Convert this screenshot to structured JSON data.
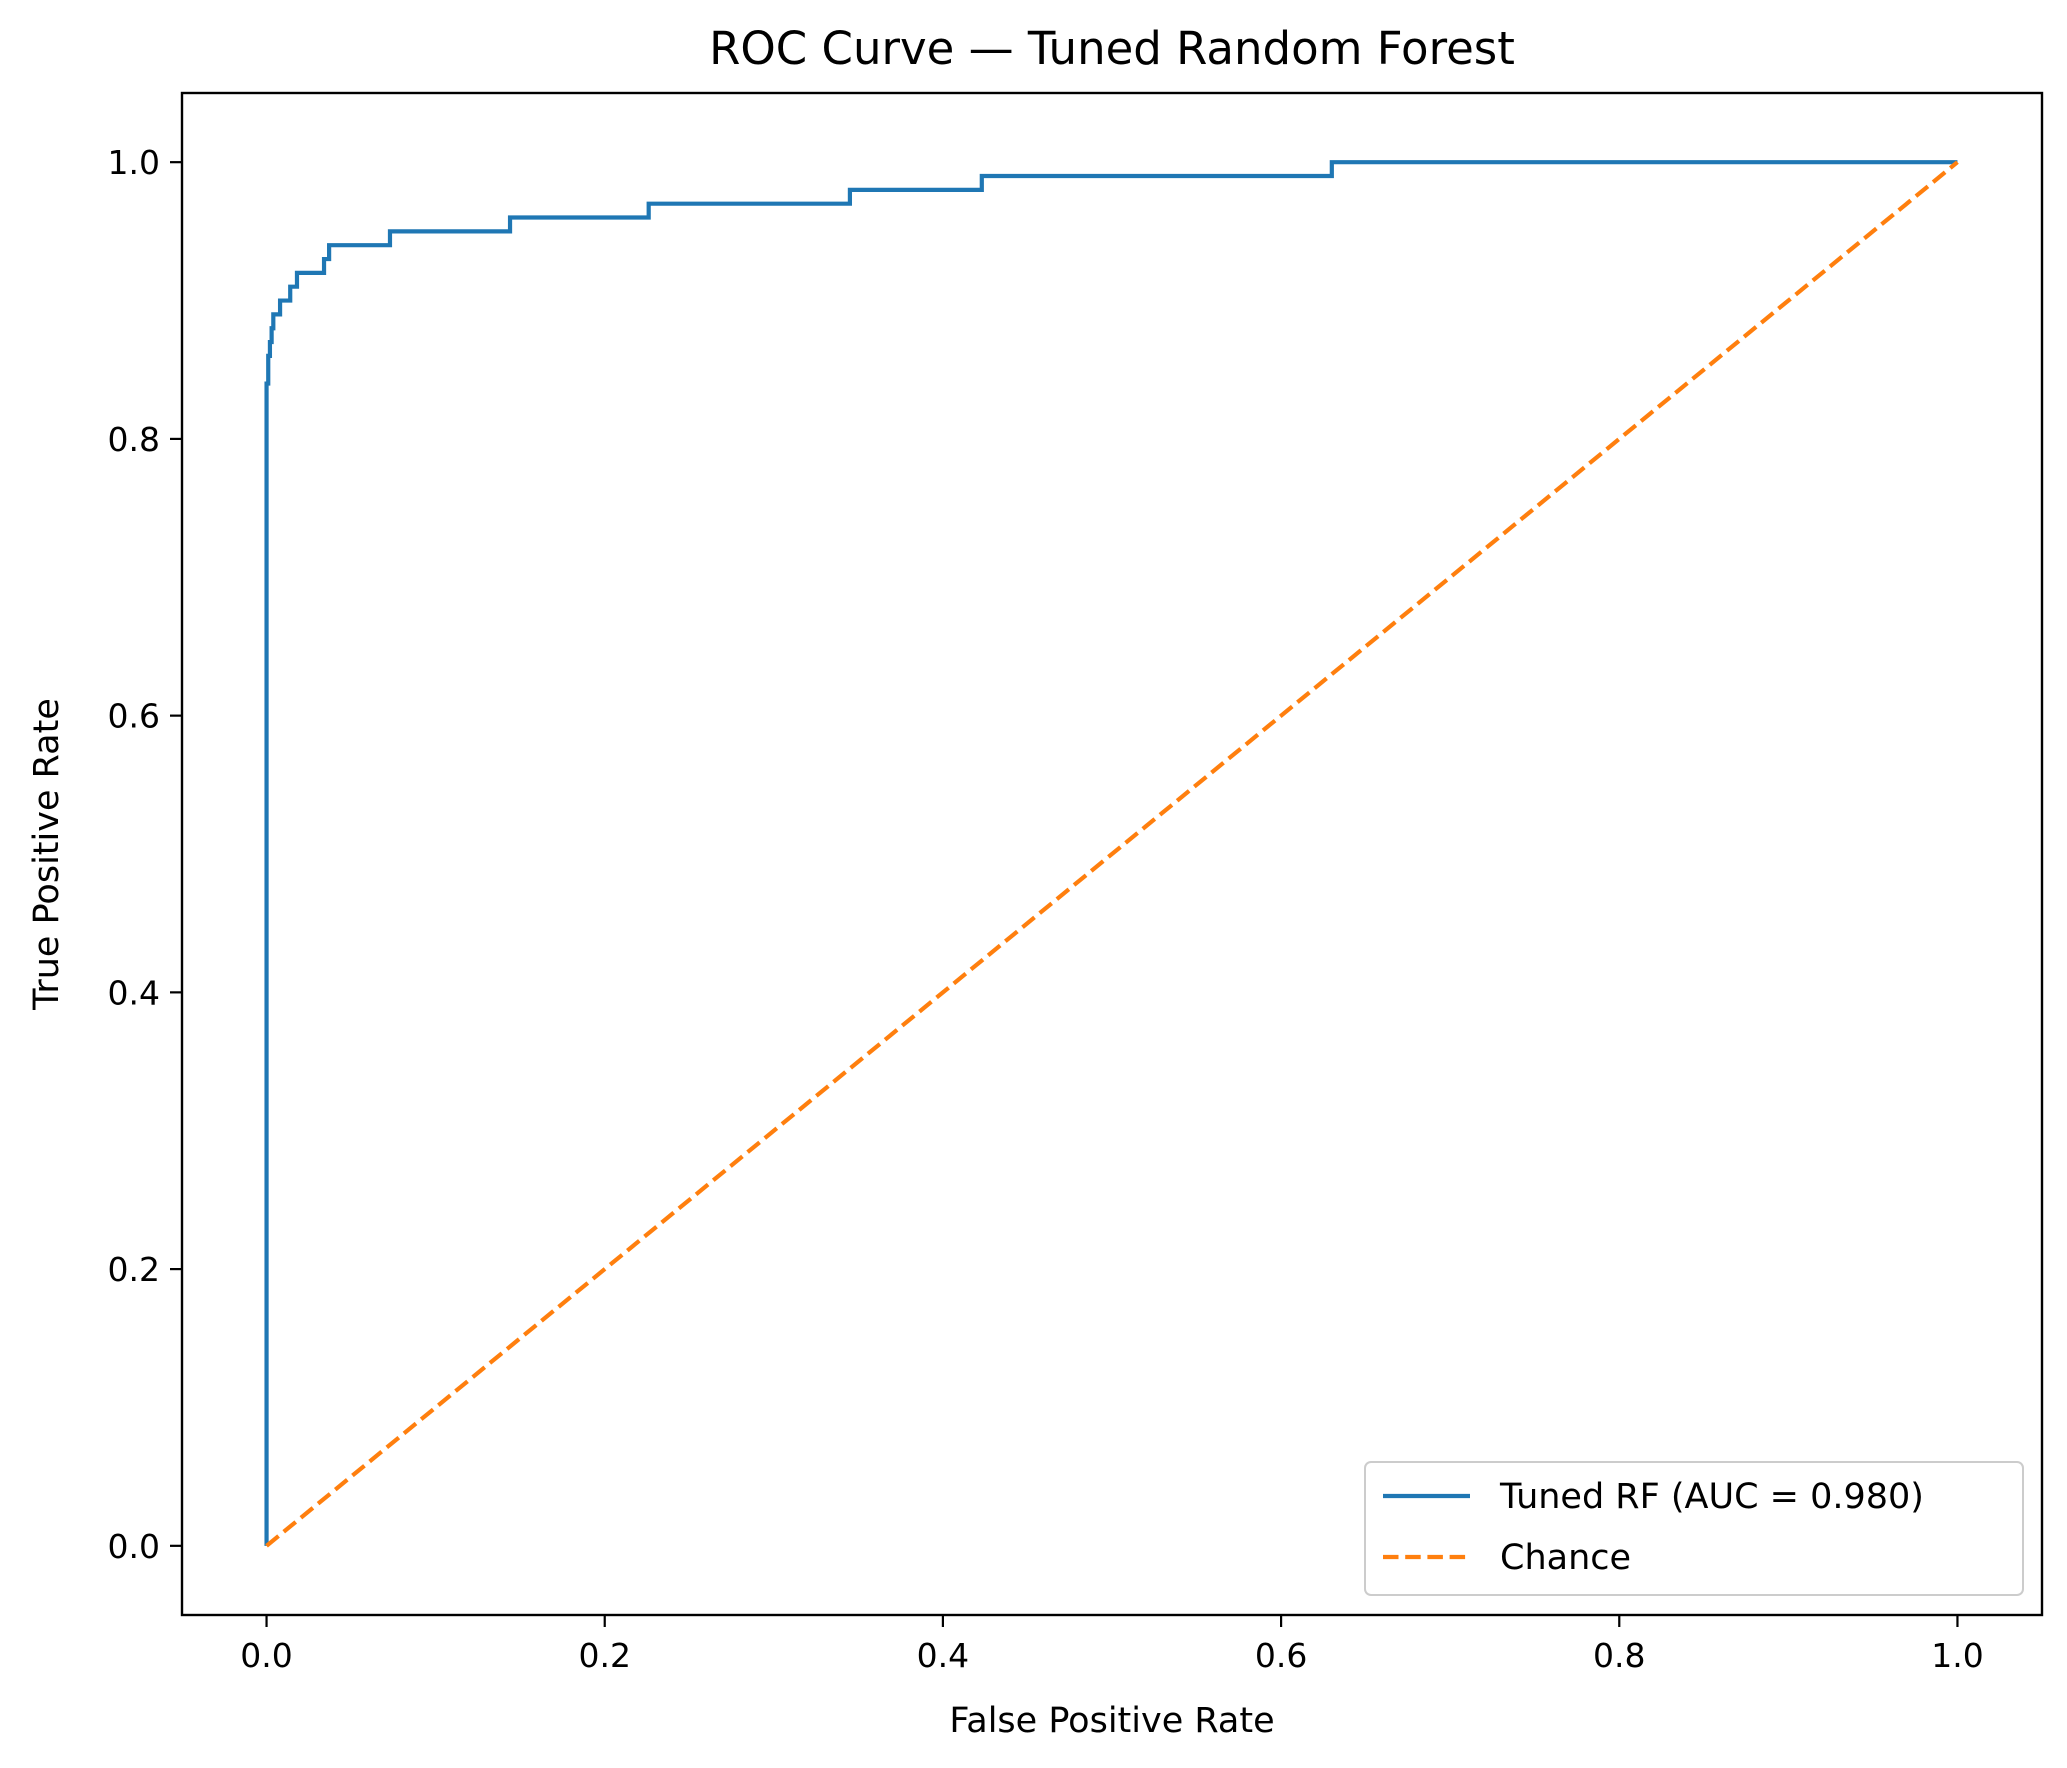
{
  "chart_data": {
    "type": "line",
    "title": "ROC Curve — Tuned Random Forest",
    "xlabel": "False Positive Rate",
    "ylabel": "True Positive Rate",
    "xlim": [
      -0.05,
      1.05
    ],
    "ylim": [
      -0.05,
      1.05
    ],
    "xticks": [
      0.0,
      0.2,
      0.4,
      0.6,
      0.8,
      1.0
    ],
    "yticks": [
      0.0,
      0.2,
      0.4,
      0.6,
      0.8,
      1.0
    ],
    "xtick_labels": [
      "0.0",
      "0.2",
      "0.4",
      "0.6",
      "0.8",
      "1.0"
    ],
    "ytick_labels": [
      "0.0",
      "0.2",
      "0.4",
      "0.6",
      "0.8",
      "1.0"
    ],
    "grid": false,
    "legend_position": "lower right",
    "series": [
      {
        "name": "Tuned RF (AUC = 0.980)",
        "style": "solid",
        "color": "#1f77b4",
        "x": [
          0.0,
          0.0,
          0.0,
          0.0,
          0.0,
          0.001,
          0.001,
          0.002,
          0.002,
          0.003,
          0.003,
          0.004,
          0.004,
          0.008,
          0.008,
          0.014,
          0.014,
          0.018,
          0.018,
          0.034,
          0.034,
          0.037,
          0.037,
          0.073,
          0.073,
          0.144,
          0.144,
          0.226,
          0.226,
          0.345,
          0.345,
          0.423,
          0.423,
          0.63,
          0.63,
          1.0
        ],
        "y": [
          0.0,
          0.5,
          0.67,
          0.8,
          0.84,
          0.84,
          0.86,
          0.86,
          0.87,
          0.87,
          0.88,
          0.88,
          0.89,
          0.89,
          0.9,
          0.9,
          0.91,
          0.91,
          0.92,
          0.92,
          0.93,
          0.93,
          0.94,
          0.94,
          0.95,
          0.95,
          0.96,
          0.96,
          0.97,
          0.97,
          0.98,
          0.98,
          0.99,
          0.99,
          1.0,
          1.0
        ]
      },
      {
        "name": "Chance",
        "style": "dashed",
        "color": "#ff7f0e",
        "x": [
          0.0,
          1.0
        ],
        "y": [
          0.0,
          1.0
        ]
      }
    ]
  }
}
